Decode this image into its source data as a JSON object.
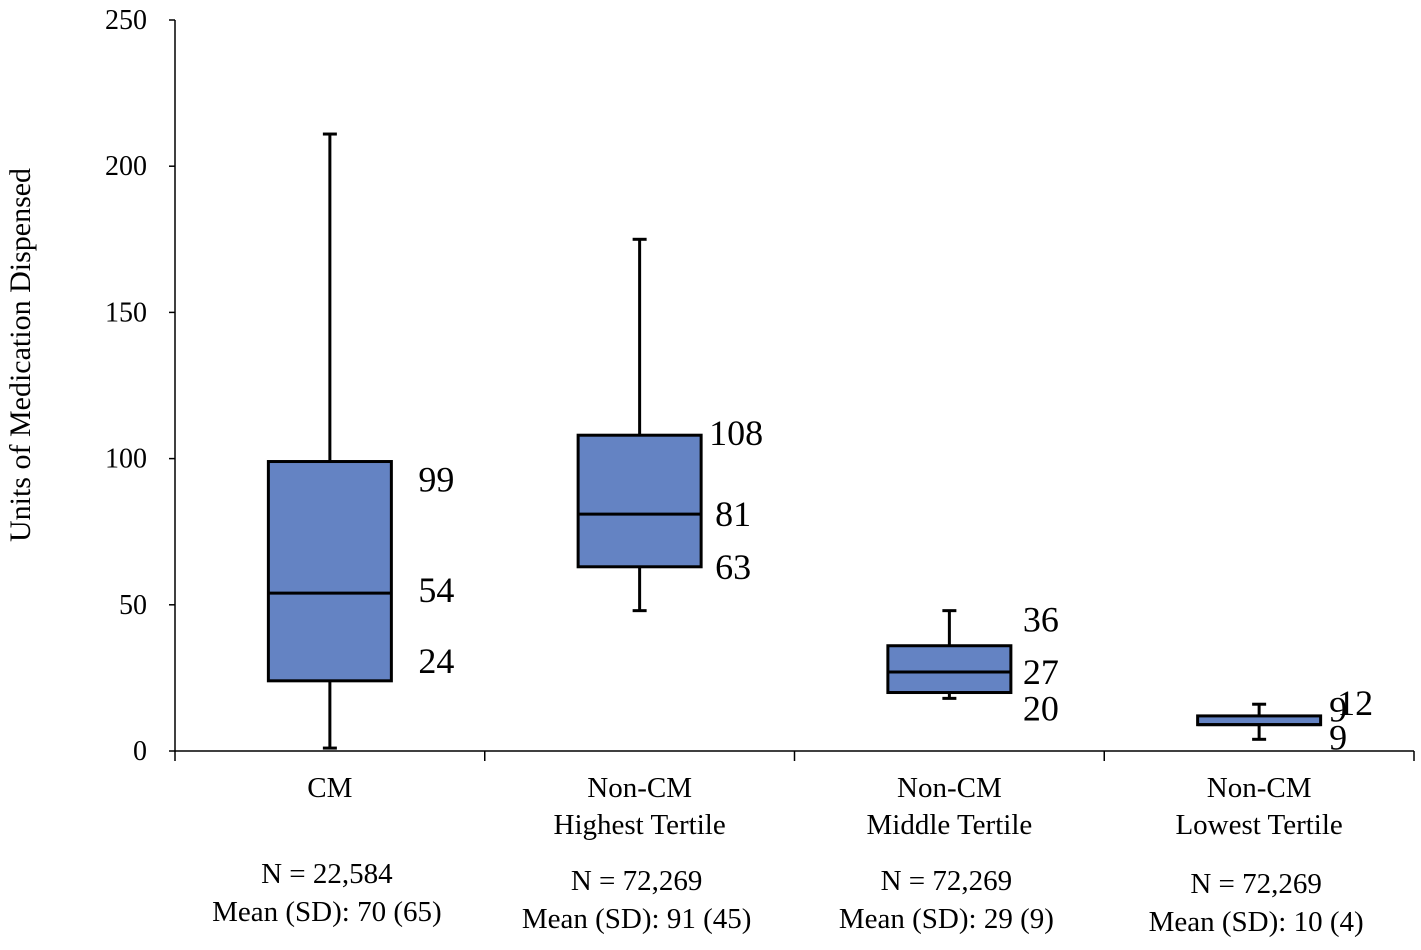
{
  "chart_data": {
    "type": "boxplot",
    "ylabel": "Units of Medication Dispensed",
    "xlabel": "",
    "ylim": [
      0,
      250
    ],
    "yticks": [
      "0",
      "50",
      "100",
      "150",
      "200",
      "250"
    ],
    "colors": {
      "box_fill": "#6483C3",
      "stroke": "#000000",
      "background": "#ffffff"
    },
    "groups": [
      {
        "name_lines": [
          "CM"
        ],
        "whisker_low": 1,
        "q1": 24,
        "median": 54,
        "q3": 99,
        "whisker_high": 211,
        "labels": {
          "q1": "24",
          "median": "54",
          "q3": "99"
        },
        "n_text": "N = 22,584",
        "mean_text": "Mean (SD): 70 (65)"
      },
      {
        "name_lines": [
          "Non-CM",
          "Highest Tertile"
        ],
        "whisker_low": 48,
        "q1": 63,
        "median": 81,
        "q3": 108,
        "whisker_high": 175,
        "labels": {
          "q1": "63",
          "median": "81",
          "q3": "108"
        },
        "n_text": "N = 72,269",
        "mean_text": "Mean (SD): 91 (45)"
      },
      {
        "name_lines": [
          "Non-CM",
          "Middle Tertile"
        ],
        "whisker_low": 18,
        "q1": 20,
        "median": 27,
        "q3": 36,
        "whisker_high": 48,
        "labels": {
          "q1": "20",
          "median": "27",
          "q3": "36"
        },
        "n_text": "N = 72,269",
        "mean_text": "Mean (SD): 29 (9)"
      },
      {
        "name_lines": [
          "Non-CM",
          "Lowest Tertile"
        ],
        "whisker_low": 4,
        "q1": 9,
        "median": 9,
        "q3": 12,
        "whisker_high": 16,
        "labels": {
          "q1": "9",
          "median": "9",
          "q3": "12"
        },
        "n_text": "N = 72,269",
        "mean_text": "Mean (SD): 10 (4)"
      }
    ]
  }
}
